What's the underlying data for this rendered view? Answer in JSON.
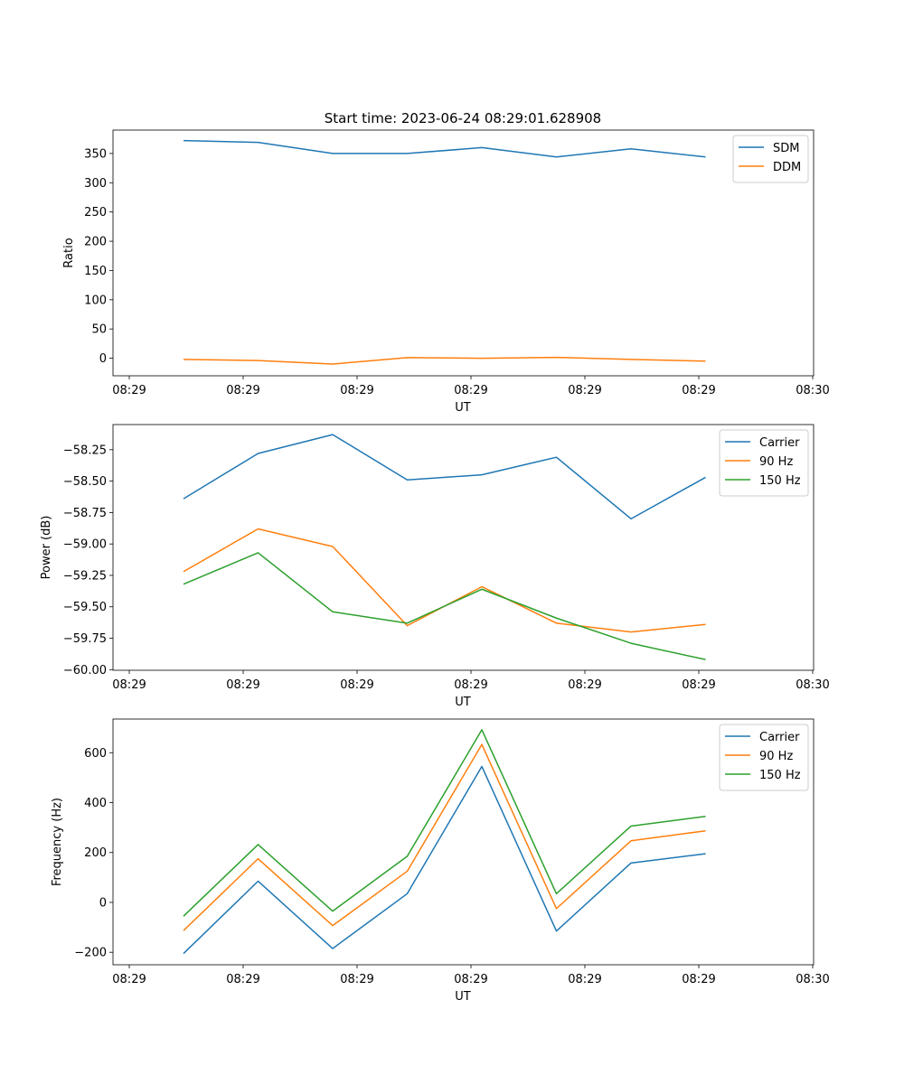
{
  "figure_title": "Start time: 2023-06-24 08:29:01.628908",
  "colors": {
    "c0": "#1f77b4",
    "c1": "#ff7f0e",
    "c2": "#2ca02c"
  },
  "chart_data": [
    {
      "type": "line",
      "title": "Start time: 2023-06-24 08:29:01.628908",
      "xlabel": "UT",
      "ylabel": "Ratio",
      "x_tick_labels": [
        "08:29",
        "08:29",
        "08:29",
        "08:29",
        "08:29",
        "08:29",
        "08:30"
      ],
      "y_ticks": [
        0,
        50,
        100,
        150,
        200,
        250,
        300,
        350
      ],
      "ylim": [
        -30,
        390
      ],
      "legend_position": "top-right",
      "grid": false,
      "series": [
        {
          "name": "SDM",
          "color": "#1f77b4",
          "values": [
            372,
            369,
            350,
            350,
            360,
            344,
            358,
            344
          ]
        },
        {
          "name": "DDM",
          "color": "#ff7f0e",
          "values": [
            -2,
            -4,
            -10,
            1,
            0,
            1.5,
            -2,
            -5
          ]
        }
      ]
    },
    {
      "type": "line",
      "title": "",
      "xlabel": "UT",
      "ylabel": "Power (dB)",
      "x_tick_labels": [
        "08:29",
        "08:29",
        "08:29",
        "08:29",
        "08:29",
        "08:29",
        "08:30"
      ],
      "y_ticks": [
        -60.0,
        -59.75,
        -59.5,
        -59.25,
        -59.0,
        -58.75,
        -58.5,
        -58.25
      ],
      "y_tick_labels": [
        "−60.00",
        "−59.75",
        "−59.50",
        "−59.25",
        "−59.00",
        "−58.75",
        "−58.50",
        "−58.25"
      ],
      "ylim": [
        -60.005,
        -58.05
      ],
      "legend_position": "top-right",
      "grid": false,
      "series": [
        {
          "name": "Carrier",
          "color": "#1f77b4",
          "values": [
            -58.64,
            -58.28,
            -58.13,
            -58.49,
            -58.45,
            -58.31,
            -58.8,
            -58.47
          ]
        },
        {
          "name": "90 Hz",
          "color": "#ff7f0e",
          "values": [
            -59.22,
            -58.88,
            -59.02,
            -59.65,
            -59.34,
            -59.63,
            -59.7,
            -59.64
          ]
        },
        {
          "name": "150 Hz",
          "color": "#2ca02c",
          "values": [
            -59.32,
            -59.07,
            -59.54,
            -59.63,
            -59.36,
            -59.59,
            -59.79,
            -59.92
          ]
        }
      ]
    },
    {
      "type": "line",
      "title": "",
      "xlabel": "UT",
      "ylabel": "Frequency (Hz)",
      "x_tick_labels": [
        "08:29",
        "08:29",
        "08:29",
        "08:29",
        "08:29",
        "08:29",
        "08:30"
      ],
      "y_ticks": [
        -200,
        0,
        200,
        400,
        600
      ],
      "y_tick_labels": [
        "−200",
        "0",
        "200",
        "400",
        "600"
      ],
      "ylim": [
        -250,
        735
      ],
      "legend_position": "top-right",
      "grid": false,
      "series": [
        {
          "name": "Carrier",
          "color": "#1f77b4",
          "values": [
            -205,
            85,
            -185,
            35,
            545,
            -115,
            158,
            195
          ]
        },
        {
          "name": "90 Hz",
          "color": "#ff7f0e",
          "values": [
            -113,
            175,
            -93,
            125,
            633,
            -25,
            247,
            287
          ]
        },
        {
          "name": "150 Hz",
          "color": "#2ca02c",
          "values": [
            -55,
            232,
            -35,
            185,
            692,
            35,
            306,
            345
          ]
        }
      ]
    }
  ]
}
